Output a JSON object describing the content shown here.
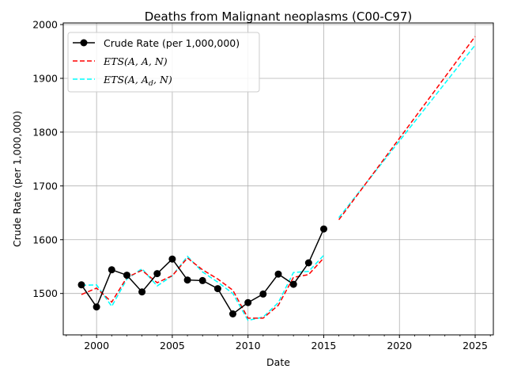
{
  "chart_data": {
    "type": "line",
    "title": "Deaths from Malignant neoplasms (C00-C97)",
    "xlabel": "Date",
    "ylabel": "Crude Rate (per 1,000,000)",
    "xlim": [
      1997.8,
      2026.2
    ],
    "ylim": [
      1423,
      2003
    ],
    "grid": true,
    "legend_position": "top-left",
    "x_ticks": [
      2000,
      2005,
      2010,
      2015,
      2020,
      2025
    ],
    "y_ticks": [
      1500,
      1600,
      1700,
      1800,
      1900,
      2000
    ],
    "x_tick_labels": [
      "2000",
      "2005",
      "2010",
      "2015",
      "2020",
      "2025"
    ],
    "y_tick_labels": [
      "1500",
      "1600",
      "1700",
      "1800",
      "1900",
      "2000"
    ],
    "series": [
      {
        "name": "Crude Rate (per 1,000,000)",
        "color": "#000000",
        "style": "solid-with-markers",
        "x": [
          1999,
          2000,
          2001,
          2002,
          2003,
          2004,
          2005,
          2006,
          2007,
          2008,
          2009,
          2010,
          2011,
          2012,
          2013,
          2014,
          2015
        ],
        "y": [
          1516,
          1475,
          1544,
          1534,
          1503,
          1537,
          1564,
          1525,
          1524,
          1509,
          1462,
          1483,
          1499,
          1536,
          1517,
          1557,
          1620
        ]
      },
      {
        "name": "ETS(A, A, N)",
        "color": "#ff0000",
        "style": "dashed",
        "segments": [
          {
            "x": [
              1999,
              2000,
              2001,
              2002,
              2003,
              2004,
              2005,
              2006,
              2007,
              2008,
              2009,
              2010,
              2011,
              2012,
              2013,
              2014,
              2015
            ],
            "y": [
              1498,
              1510,
              1484,
              1530,
              1543,
              1520,
              1533,
              1566,
              1544,
              1527,
              1506,
              1454,
              1454,
              1478,
              1530,
              1535,
              1566
            ]
          },
          {
            "x": [
              2016,
              2025
            ],
            "y": [
              1637,
              1978
            ]
          }
        ]
      },
      {
        "name": "ETS(A, A_d, N)",
        "color": "#00ffff",
        "style": "dashed",
        "segments": [
          {
            "x": [
              1999,
              2000,
              2001,
              2002,
              2003,
              2004,
              2005,
              2006,
              2007,
              2008,
              2009,
              2010,
              2011,
              2012,
              2013,
              2014,
              2015
            ],
            "y": [
              1515,
              1516,
              1476,
              1527,
              1546,
              1514,
              1533,
              1569,
              1540,
              1521,
              1500,
              1450,
              1456,
              1483,
              1539,
              1541,
              1571
            ]
          },
          {
            "x": [
              2016,
              2025
            ],
            "y": [
              1641,
              1962
            ]
          }
        ]
      }
    ]
  }
}
